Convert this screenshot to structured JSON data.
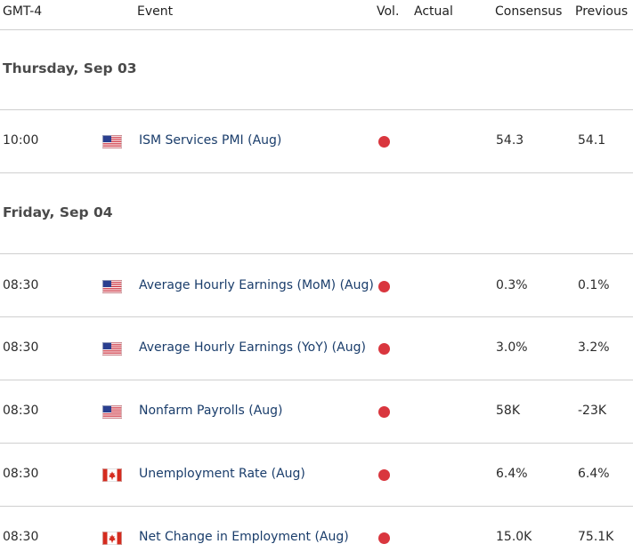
{
  "header": {
    "timezone": "GMT-4",
    "event": "Event",
    "vol": "Vol.",
    "actual": "Actual",
    "consensus": "Consensus",
    "previous": "Previous"
  },
  "colors": {
    "volatility_high": "#d9363e",
    "event_text": "#1a3d6b",
    "divider": "#cfcfcf"
  },
  "days": [
    {
      "label": "Thursday, Sep 03",
      "events": [
        {
          "time": "10:00",
          "country_icon": "us-flag-icon",
          "event": "ISM Services PMI (Aug)",
          "actual": "",
          "consensus": "54.3",
          "previous": "54.1"
        }
      ]
    },
    {
      "label": "Friday, Sep 04",
      "events": [
        {
          "time": "08:30",
          "country_icon": "us-flag-icon",
          "event": "Average Hourly Earnings (MoM) (Aug)",
          "actual": "",
          "consensus": "0.3%",
          "previous": "0.1%"
        },
        {
          "time": "08:30",
          "country_icon": "us-flag-icon",
          "event": "Average Hourly Earnings (YoY) (Aug)",
          "actual": "",
          "consensus": "3.0%",
          "previous": "3.2%"
        },
        {
          "time": "08:30",
          "country_icon": "us-flag-icon",
          "event": "Nonfarm Payrolls (Aug)",
          "actual": "",
          "consensus": "58K",
          "previous": "-23K"
        },
        {
          "time": "08:30",
          "country_icon": "canada-flag-icon",
          "event": "Unemployment Rate (Aug)",
          "actual": "",
          "consensus": "6.4%",
          "previous": "6.4%"
        },
        {
          "time": "08:30",
          "country_icon": "canada-flag-icon",
          "event": "Net Change in Employment (Aug)",
          "actual": "",
          "consensus": "15.0K",
          "previous": "75.1K"
        }
      ]
    }
  ]
}
